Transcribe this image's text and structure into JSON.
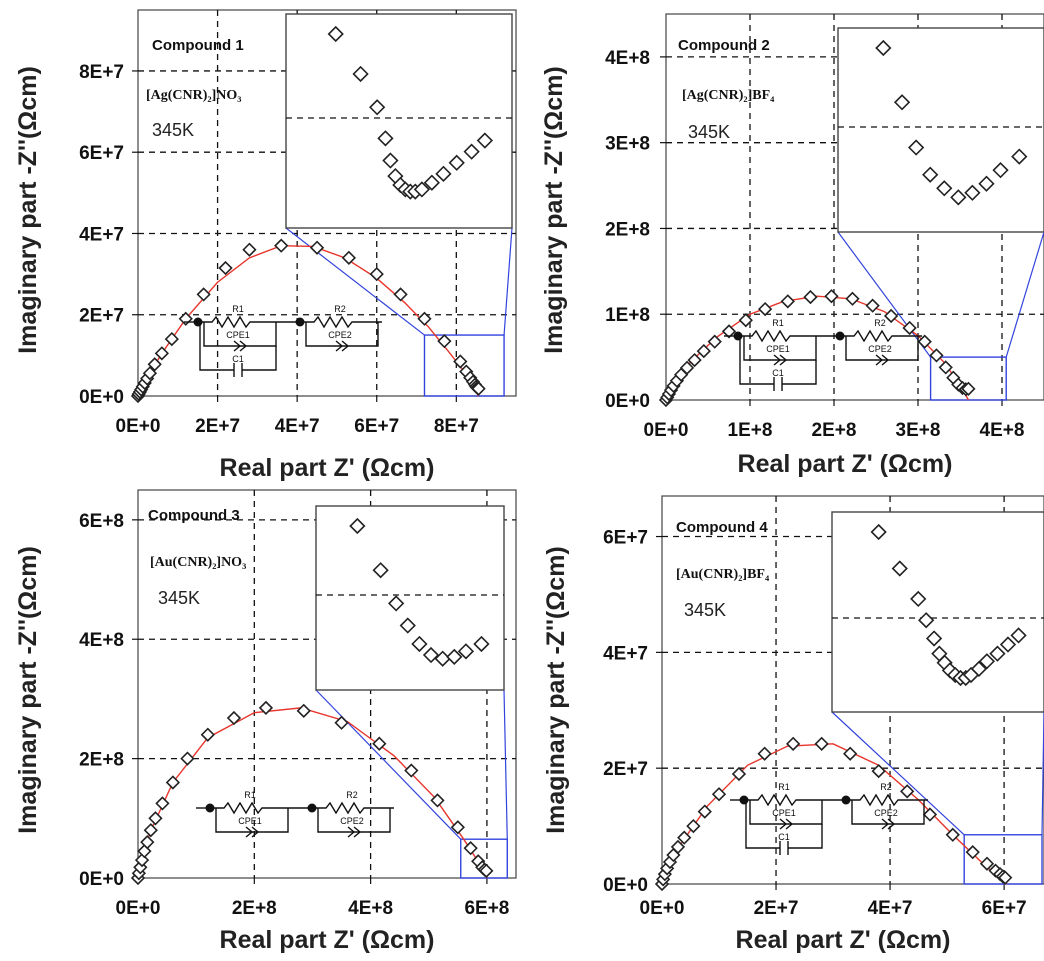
{
  "chart_data": [
    {
      "type": "scatter",
      "label": "Compound 1",
      "formula": "[Ag(CNR)₂]NO₃",
      "temperature": "345K",
      "xlabel": "Real part Z' (Ωcm)",
      "ylabel": "Imaginary part -Z''(Ωcm)",
      "xlim": [
        0,
        95000000
      ],
      "ylim": [
        0,
        95000000
      ],
      "x_ticks": [
        0,
        20000000,
        40000000,
        60000000,
        80000000
      ],
      "x_tick_labels": [
        "0E+0",
        "2E+7",
        "4E+7",
        "6E+7",
        "8E+7"
      ],
      "y_ticks": [
        0,
        20000000,
        40000000,
        60000000,
        80000000
      ],
      "y_tick_labels": [
        "0E+0",
        "2E+7",
        "4E+7",
        "6E+7",
        "8E+7"
      ],
      "grid": "dashed",
      "series": [
        {
          "type": "scatter",
          "marker": "diamond",
          "color": "#222222",
          "x": [
            0,
            200000,
            500000,
            800000,
            1200000,
            1700000,
            2300000,
            3000000,
            4200000,
            6000000,
            8500000,
            12000000,
            16500000,
            22000000,
            28000000,
            36000000,
            45000000,
            53000000,
            60000000,
            66000000,
            72000000,
            77000000,
            81000000,
            82500000,
            83500000,
            84200000,
            84700000,
            85000000,
            85300000,
            85600000
          ],
          "y": [
            0,
            500000,
            1000000,
            1600000,
            2300000,
            3200000,
            4300000,
            5600000,
            7800000,
            10500000,
            14000000,
            19000000,
            25000000,
            31500000,
            36000000,
            37000000,
            36500000,
            34000000,
            30000000,
            25000000,
            19000000,
            13500000,
            8500000,
            6000000,
            4500000,
            3500000,
            2800000,
            2300000,
            2000000,
            1800000
          ]
        },
        {
          "type": "line",
          "name": "fit",
          "color": "#e8342a",
          "x": [
            0,
            2000000,
            6000000,
            12000000,
            20000000,
            28000000,
            36000000,
            44000000,
            52000000,
            60000000,
            67000000,
            73000000,
            78000000,
            82000000,
            84500000,
            85500000
          ],
          "y": [
            0,
            4000000,
            10500000,
            19000000,
            28000000,
            34000000,
            37000000,
            36800000,
            34000000,
            29000000,
            23000000,
            17000000,
            11000000,
            6000000,
            2500000,
            0
          ]
        }
      ],
      "inset": {
        "zoom_region": {
          "x": [
            72000000,
            92000000
          ],
          "y": [
            0,
            15000000
          ]
        },
        "points": {
          "x": [
            80000000,
            81500000,
            82500000,
            83000000,
            83300000,
            83600000,
            83900000,
            84200000,
            84500000,
            84800000,
            85200000,
            85800000,
            86500000,
            87300000,
            88200000,
            89000000
          ],
          "y": [
            14000000,
            12200000,
            10700000,
            9300000,
            8300000,
            7600000,
            7200000,
            7000000,
            6900000,
            6900000,
            7000000,
            7300000,
            7700000,
            8200000,
            8700000,
            9200000
          ]
        }
      },
      "circuit": {
        "labels": [
          "R1",
          "CPE1",
          "C1",
          "R2",
          "CPE2"
        ]
      }
    },
    {
      "type": "scatter",
      "label": "Compound 2",
      "formula": "[Ag(CNR)₂]BF₄",
      "temperature": "345K",
      "xlabel": "Real part Z' (Ωcm)",
      "ylabel": "Imaginary part -Z''(Ωcm)",
      "xlim": [
        0,
        450000000
      ],
      "ylim": [
        0,
        450000000
      ],
      "x_ticks": [
        0,
        100000000,
        200000000,
        300000000,
        400000000
      ],
      "x_tick_labels": [
        "0E+0",
        "1E+8",
        "2E+8",
        "3E+8",
        "4E+8"
      ],
      "y_ticks": [
        0,
        100000000,
        200000000,
        300000000,
        400000000
      ],
      "y_tick_labels": [
        "0E+0",
        "1E+8",
        "2E+8",
        "3E+8",
        "4E+8"
      ],
      "grid": "dashed",
      "series": [
        {
          "type": "scatter",
          "marker": "diamond",
          "color": "#222222",
          "x": [
            0,
            1500000,
            3500000,
            6000000,
            9000000,
            13000000,
            18000000,
            25000000,
            34000000,
            45000000,
            58000000,
            75000000,
            95000000,
            118000000,
            145000000,
            172000000,
            197000000,
            222000000,
            246000000,
            268000000,
            290000000,
            308000000,
            322000000,
            333000000,
            342000000,
            348000000,
            353000000,
            357000000,
            360000000
          ],
          "y": [
            0,
            3000000,
            7000000,
            11500000,
            16500000,
            22500000,
            29500000,
            37500000,
            46500000,
            57000000,
            68000000,
            80000000,
            93000000,
            106000000,
            115000000,
            120000000,
            121000000,
            118000000,
            110000000,
            98000000,
            84000000,
            68000000,
            52000000,
            38000000,
            26000000,
            18000000,
            14000000,
            12500000,
            13000000
          ]
        },
        {
          "type": "line",
          "name": "fit",
          "color": "#e8342a",
          "x": [
            0,
            10000000,
            30000000,
            60000000,
            100000000,
            140000000,
            180000000,
            220000000,
            260000000,
            300000000,
            330000000,
            350000000,
            360000000
          ],
          "y": [
            0,
            20000000,
            45000000,
            73000000,
            100000000,
            115000000,
            121000000,
            118000000,
            103000000,
            75000000,
            45000000,
            18000000,
            0
          ]
        }
      ],
      "inset": {
        "zoom_region": {
          "x": [
            315000000,
            405000000
          ],
          "y": [
            0,
            50000000
          ]
        },
        "points": {
          "x": [
            340000000,
            344000000,
            347000000,
            350000000,
            353000000,
            356000000,
            359000000,
            362000000,
            365000000,
            369000000
          ],
          "y": [
            48000000,
            42000000,
            37000000,
            34000000,
            32500000,
            31500000,
            32000000,
            33000000,
            34500000,
            36000000
          ]
        }
      },
      "circuit": {
        "labels": [
          "R1",
          "CPE1",
          "C1",
          "R2",
          "CPE2"
        ]
      }
    },
    {
      "type": "scatter",
      "label": "Compound 3",
      "formula": "[Au(CNR)₂]NO₃",
      "temperature": "345K",
      "xlabel": "Real part Z' (Ωcm)",
      "ylabel": "Imaginary part -Z''(Ωcm)",
      "xlim": [
        0,
        650000000
      ],
      "ylim": [
        0,
        650000000
      ],
      "x_ticks": [
        0,
        200000000,
        400000000,
        600000000
      ],
      "x_tick_labels": [
        "0E+0",
        "2E+8",
        "4E+8",
        "6E+8"
      ],
      "y_ticks": [
        0,
        200000000,
        400000000,
        600000000
      ],
      "y_tick_labels": [
        "0E+0",
        "2E+8",
        "4E+8",
        "6E+8"
      ],
      "grid": "dashed",
      "series": [
        {
          "type": "scatter",
          "marker": "diamond",
          "color": "#222222",
          "x": [
            0,
            1500000,
            4000000,
            7000000,
            11000000,
            16000000,
            22000000,
            30000000,
            42000000,
            60000000,
            85000000,
            120000000,
            165000000,
            220000000,
            285000000,
            350000000,
            415000000,
            470000000,
            515000000,
            550000000,
            572000000,
            585000000,
            592000000,
            596000000,
            599000000
          ],
          "y": [
            0,
            8000000,
            18000000,
            30000000,
            45000000,
            60000000,
            80000000,
            100000000,
            125000000,
            160000000,
            200000000,
            240000000,
            268000000,
            285000000,
            280000000,
            260000000,
            225000000,
            180000000,
            130000000,
            85000000,
            50000000,
            28000000,
            18000000,
            14000000,
            12000000
          ]
        },
        {
          "type": "line",
          "name": "fit",
          "color": "#e8342a",
          "x": [
            0,
            20000000,
            60000000,
            120000000,
            200000000,
            280000000,
            360000000,
            440000000,
            510000000,
            560000000,
            590000000,
            600000000
          ],
          "y": [
            0,
            75000000,
            160000000,
            235000000,
            277000000,
            285000000,
            262000000,
            205000000,
            135000000,
            65000000,
            20000000,
            0
          ]
        }
      ],
      "inset": {
        "zoom_region": {
          "x": [
            555000000,
            635000000
          ],
          "y": [
            0,
            65000000
          ]
        },
        "points": {
          "x": [
            572000000,
            578000000,
            582000000,
            585000000,
            588000000,
            591000000,
            594000000,
            597000000,
            600000000,
            604000000
          ],
          "y": [
            60000000,
            48000000,
            39000000,
            33000000,
            28000000,
            25000000,
            24000000,
            24500000,
            26000000,
            28000000
          ]
        }
      },
      "circuit": {
        "labels": [
          "R1",
          "CPE1",
          "R2",
          "CPE2"
        ]
      }
    },
    {
      "type": "scatter",
      "label": "Compound 4",
      "formula": "[Au(CNR)₂]BF₄",
      "temperature": "345K",
      "xlabel": "Real part Z' (Ωcm)",
      "ylabel": "Imaginary part -Z''(Ωcm)",
      "xlim": [
        0,
        67000000
      ],
      "ylim": [
        0,
        67000000
      ],
      "x_ticks": [
        0,
        20000000,
        40000000,
        60000000
      ],
      "x_tick_labels": [
        "0E+0",
        "2E+7",
        "4E+7",
        "6E+7"
      ],
      "y_ticks": [
        0,
        20000000,
        40000000,
        60000000
      ],
      "y_tick_labels": [
        "0E+0",
        "2E+7",
        "4E+7",
        "6E+7"
      ],
      "grid": "dashed",
      "series": [
        {
          "type": "scatter",
          "marker": "diamond",
          "color": "#222222",
          "x": [
            0,
            200000,
            500000,
            900000,
            1400000,
            2000000,
            2800000,
            3900000,
            5500000,
            7500000,
            10000000,
            13500000,
            18000000,
            23000000,
            28000000,
            33000000,
            38000000,
            43000000,
            47000000,
            51000000,
            54500000,
            57000000,
            58500000,
            59300000,
            59800000,
            60200000
          ],
          "y": [
            0,
            800000,
            1700000,
            2700000,
            3800000,
            5000000,
            6400000,
            8000000,
            10000000,
            12500000,
            15500000,
            19000000,
            22500000,
            24200000,
            24200000,
            22500000,
            19500000,
            16000000,
            12000000,
            8500000,
            5500000,
            3500000,
            2300000,
            1700000,
            1300000,
            1100000
          ]
        },
        {
          "type": "line",
          "name": "fit",
          "color": "#e8342a",
          "x": [
            0,
            3000000,
            8000000,
            15000000,
            22000000,
            30000000,
            38000000,
            45000000,
            51000000,
            56000000,
            59000000,
            60500000
          ],
          "y": [
            0,
            6500000,
            13500000,
            20500000,
            23800000,
            24200000,
            20500000,
            14500000,
            8500000,
            3800000,
            1200000,
            0
          ]
        }
      ],
      "inset": {
        "zoom_region": {
          "x": [
            53000000,
            67000000
          ],
          "y": [
            0,
            8500000
          ]
        },
        "points": {
          "x": [
            57200000,
            58000000,
            58700000,
            59000000,
            59300000,
            59500000,
            59700000,
            59900000,
            60100000,
            60300000,
            60500000,
            60700000,
            61000000,
            61300000,
            61700000,
            62100000,
            62500000
          ],
          "y": [
            8000000,
            6800000,
            5800000,
            5100000,
            4500000,
            4000000,
            3700000,
            3450000,
            3300000,
            3200000,
            3200000,
            3300000,
            3500000,
            3750000,
            4000000,
            4300000,
            4600000
          ]
        }
      },
      "circuit": {
        "labels": [
          "R1",
          "CPE1",
          "C1",
          "R2",
          "CPE2"
        ]
      }
    }
  ]
}
